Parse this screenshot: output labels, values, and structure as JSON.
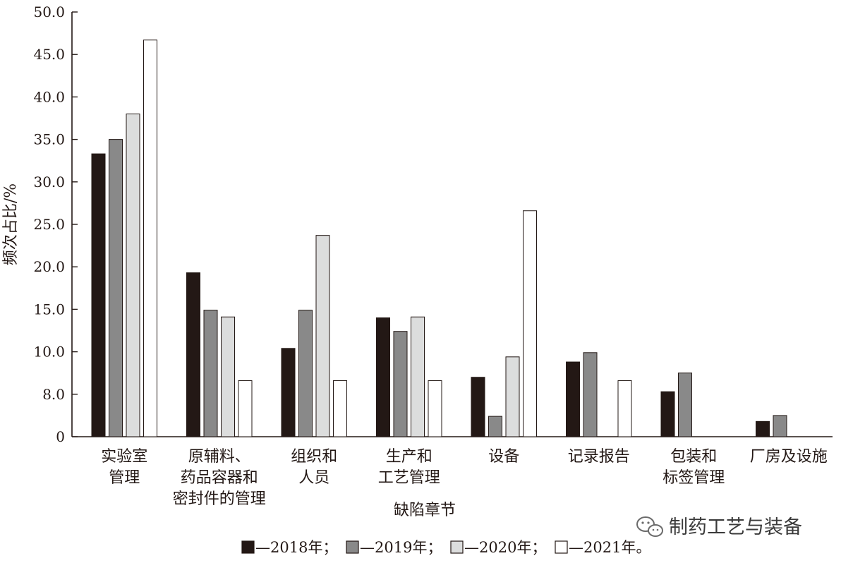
{
  "chart_data": {
    "type": "bar",
    "ylabel": "频次占比/%",
    "xlabel": "缺陷章节",
    "ylim": [
      0,
      50
    ],
    "yticks": [
      "0",
      "8.0",
      "10.0",
      "15.0",
      "20.0",
      "25.0",
      "30.0",
      "35.0",
      "40.0",
      "45.0",
      "50.0"
    ],
    "categories": [
      [
        "实验室",
        "管理"
      ],
      [
        "原辅料、",
        "药品容器和",
        "密封件的管理"
      ],
      [
        "组织和",
        "人员"
      ],
      [
        "生产和",
        "工艺管理"
      ],
      [
        "设备"
      ],
      [
        "记录报告"
      ],
      [
        "包装和",
        "标签管理"
      ],
      [
        "厂房及设施"
      ]
    ],
    "series": [
      {
        "name": "2018年",
        "legend_label": "—2018年；",
        "color": "#231815",
        "values": [
          33.3,
          19.3,
          10.4,
          14.0,
          7.0,
          8.8,
          5.3,
          1.8
        ]
      },
      {
        "name": "2019年",
        "legend_label": "—2019年；",
        "color": "#898989",
        "values": [
          35.0,
          14.9,
          14.9,
          12.4,
          2.4,
          9.9,
          7.5,
          2.5
        ]
      },
      {
        "name": "2020年",
        "legend_label": "—2020年；",
        "color": "#dcdddd",
        "values": [
          38.0,
          14.1,
          23.7,
          14.1,
          9.4,
          0,
          0,
          0
        ]
      },
      {
        "name": "2021年",
        "legend_label": "—2021年。",
        "color": "#ffffff",
        "values": [
          46.7,
          6.6,
          6.6,
          6.6,
          26.6,
          6.6,
          0,
          0
        ]
      }
    ],
    "grid": false,
    "legend_position": "bottom"
  },
  "watermark": {
    "text": "制药工艺与装备",
    "icon": "wechat-icon"
  }
}
